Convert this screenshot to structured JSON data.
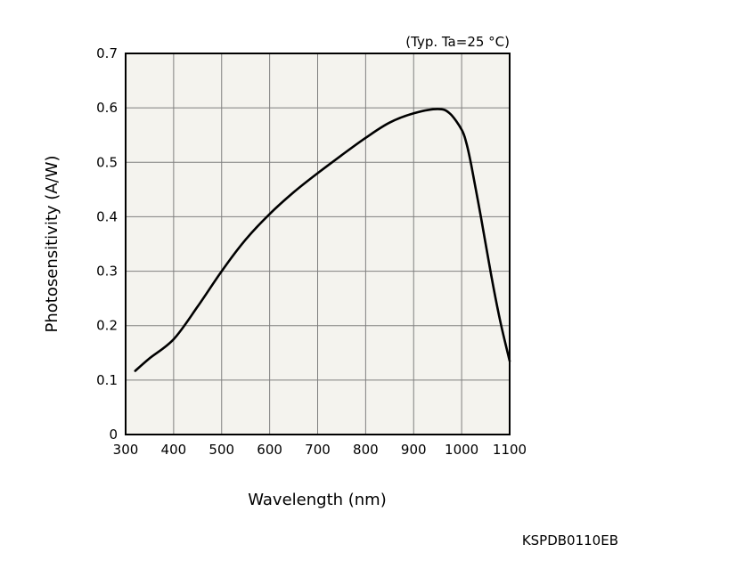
{
  "chart_data": {
    "type": "line",
    "title": "",
    "condition_note": "(Typ. Ta=25 °C)",
    "xlabel": "Wavelength (nm)",
    "ylabel": "Photosensitivity (A/W)",
    "figure_code": "KSPDB0110EB",
    "xlim": [
      300,
      1100
    ],
    "ylim": [
      0,
      0.7
    ],
    "x_ticks": [
      300,
      400,
      500,
      600,
      700,
      800,
      900,
      1000,
      1100
    ],
    "y_ticks": [
      0,
      0.1,
      0.2,
      0.3,
      0.4,
      0.5,
      0.6,
      0.7
    ],
    "x_tick_labels": [
      "300",
      "400",
      "500",
      "600",
      "700",
      "800",
      "900",
      "1000",
      "1100"
    ],
    "y_tick_labels": [
      "0",
      "0.1",
      "0.2",
      "0.3",
      "0.4",
      "0.5",
      "0.6",
      "0.7"
    ],
    "grid": true,
    "series": [
      {
        "name": "",
        "color": "#000000",
        "x": [
          320,
          350,
          400,
          450,
          500,
          550,
          600,
          650,
          700,
          750,
          800,
          850,
          900,
          950,
          975,
          1000,
          1010,
          1020,
          1040,
          1060,
          1080,
          1100
        ],
        "y": [
          0.117,
          0.14,
          0.175,
          0.235,
          0.3,
          0.358,
          0.405,
          0.445,
          0.48,
          0.513,
          0.545,
          0.573,
          0.59,
          0.598,
          0.59,
          0.56,
          0.535,
          0.495,
          0.4,
          0.3,
          0.21,
          0.135
        ]
      }
    ]
  }
}
